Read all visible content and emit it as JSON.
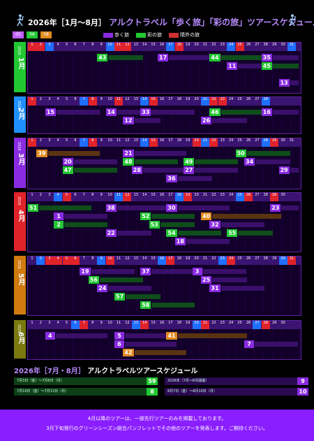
{
  "header": {
    "year_prefix": "2026年",
    "period": "［1月～8月］",
    "title": "アルクトラベル「歩く旅」「彩の旅」ツアースケジュール"
  },
  "legend": {
    "levels": [
      "05",
      "06",
      "08"
    ],
    "items": [
      {
        "label": "歩く旅",
        "color": "#8a2be2"
      },
      {
        "label": "彩の旅",
        "color": "#22c832"
      },
      {
        "label": "晴外の旅",
        "color": "#d03030"
      }
    ]
  },
  "months": [
    {
      "year": "2026",
      "name": "1月",
      "color": "#22c832",
      "days": [
        1,
        2,
        3,
        4,
        5,
        6,
        7,
        8,
        9,
        10,
        11,
        12,
        13,
        14,
        15,
        16,
        17,
        18,
        19,
        20,
        21,
        22,
        23,
        24,
        25,
        26,
        27,
        28,
        29,
        30,
        31
      ],
      "sat": [
        3,
        10,
        17,
        24,
        31
      ],
      "hol": [
        1,
        2,
        11,
        12,
        18,
        25
      ],
      "tours": [
        {
          "n": "43",
          "c": "g",
          "d": 9,
          "w": 4,
          "row": 1
        },
        {
          "n": "17",
          "c": "p",
          "d": 16,
          "w": 6,
          "row": 1
        },
        {
          "n": "44",
          "c": "g",
          "d": 22,
          "w": 5,
          "row": 1
        },
        {
          "n": "35",
          "c": "p",
          "d": 28,
          "w": 3,
          "row": 1
        },
        {
          "n": "11",
          "c": "p",
          "d": 24,
          "w": 4,
          "row": 2
        },
        {
          "n": "45",
          "c": "g",
          "d": 28,
          "w": 3,
          "row": 2
        },
        {
          "n": "13",
          "c": "p",
          "d": 30,
          "w": 1,
          "row": 4
        }
      ]
    },
    {
      "year": "2026",
      "name": "2月",
      "color": "#1f8fff",
      "days": [
        1,
        2,
        3,
        4,
        5,
        6,
        7,
        8,
        9,
        10,
        11,
        12,
        13,
        14,
        15,
        16,
        17,
        18,
        19,
        20,
        21,
        22,
        23,
        24,
        25,
        26,
        27,
        28
      ],
      "sat": [
        7,
        14,
        21,
        28
      ],
      "hol": [
        1,
        8,
        11,
        15,
        22,
        23
      ],
      "tours": [
        {
          "n": "15",
          "c": "p",
          "d": 3,
          "w": 5,
          "row": 1
        },
        {
          "n": "14",
          "c": "p",
          "d": 10,
          "w": 5,
          "row": 1
        },
        {
          "n": "33",
          "c": "p",
          "d": 14,
          "w": 5,
          "row": 1
        },
        {
          "n": "46",
          "c": "g",
          "d": 22,
          "w": 5,
          "row": 1
        },
        {
          "n": "16",
          "c": "p",
          "d": 28,
          "w": 3,
          "row": 1
        },
        {
          "n": "12",
          "c": "p",
          "d": 12,
          "w": 3,
          "row": 2
        },
        {
          "n": "26",
          "c": "p",
          "d": 21,
          "w": 4,
          "row": 2
        }
      ]
    },
    {
      "year": "2026",
      "name": "3月",
      "color": "#8a2be2",
      "days": [
        1,
        2,
        3,
        4,
        5,
        6,
        7,
        8,
        9,
        10,
        11,
        12,
        13,
        14,
        15,
        16,
        17,
        18,
        19,
        20,
        21,
        22,
        23,
        24,
        25,
        26,
        27,
        28,
        29,
        30,
        31
      ],
      "sat": [
        7,
        14,
        21,
        28
      ],
      "hol": [
        1,
        8,
        15,
        20,
        22,
        29
      ],
      "tours": [
        {
          "n": "39",
          "c": "o",
          "d": 2,
          "w": 6,
          "row": 1
        },
        {
          "n": "21",
          "c": "p",
          "d": 12,
          "w": 6,
          "row": 1
        },
        {
          "n": "50",
          "c": "g",
          "d": 25,
          "w": 5,
          "row": 1
        },
        {
          "n": "20",
          "c": "p",
          "d": 5,
          "w": 5,
          "row": 2
        },
        {
          "n": "48",
          "c": "g",
          "d": 12,
          "w": 5,
          "row": 2
        },
        {
          "n": "49",
          "c": "g",
          "d": 19,
          "w": 5,
          "row": 2
        },
        {
          "n": "34",
          "c": "p",
          "d": 26,
          "w": 4,
          "row": 2
        },
        {
          "n": "47",
          "c": "g",
          "d": 5,
          "w": 5,
          "row": 3
        },
        {
          "n": "28",
          "c": "p",
          "d": 13,
          "w": 5,
          "row": 3
        },
        {
          "n": "27",
          "c": "p",
          "d": 19,
          "w": 5,
          "row": 3
        },
        {
          "n": "29",
          "c": "p",
          "d": 30,
          "w": 1,
          "row": 3
        },
        {
          "n": "36",
          "c": "p",
          "d": 17,
          "w": 4,
          "row": 4
        }
      ]
    },
    {
      "year": "2026",
      "name": "4月",
      "color": "#e0232b",
      "days": [
        1,
        2,
        3,
        4,
        5,
        6,
        7,
        8,
        9,
        10,
        11,
        12,
        13,
        14,
        15,
        16,
        17,
        18,
        19,
        20,
        21,
        22,
        23,
        24,
        25,
        26,
        27,
        28,
        29,
        30
      ],
      "sat": [
        4,
        11,
        18,
        25
      ],
      "hol": [
        5,
        12,
        19,
        26,
        29
      ],
      "tours": [
        {
          "n": "51",
          "c": "g",
          "d": 1,
          "w": 6,
          "row": 1
        },
        {
          "n": "38",
          "c": "p",
          "d": 10,
          "w": 6,
          "row": 1
        },
        {
          "n": "30",
          "c": "p",
          "d": 17,
          "w": 6,
          "row": 1
        },
        {
          "n": "23",
          "c": "p",
          "d": 29,
          "w": 2,
          "row": 1
        },
        {
          "n": "1",
          "c": "p",
          "d": 4,
          "w": 5,
          "row": 2
        },
        {
          "n": "52",
          "c": "g",
          "d": 14,
          "w": 5,
          "row": 2
        },
        {
          "n": "40",
          "c": "o",
          "d": 21,
          "w": 8,
          "row": 2
        },
        {
          "n": "2",
          "c": "g",
          "d": 4,
          "w": 5,
          "row": 3
        },
        {
          "n": "53",
          "c": "g",
          "d": 15,
          "w": 4,
          "row": 3
        },
        {
          "n": "32",
          "c": "p",
          "d": 22,
          "w": 5,
          "row": 3
        },
        {
          "n": "54",
          "c": "g",
          "d": 17,
          "w": 5,
          "row": 4
        },
        {
          "n": "55",
          "c": "g",
          "d": 24,
          "w": 4,
          "row": 4
        },
        {
          "n": "22",
          "c": "p",
          "d": 10,
          "w": 4,
          "row": 4
        },
        {
          "n": "18",
          "c": "p",
          "d": 18,
          "w": 5,
          "row": 5
        }
      ]
    },
    {
      "year": "2026",
      "name": "5月",
      "color": "#d07a10",
      "days": [
        1,
        2,
        3,
        4,
        5,
        6,
        7,
        8,
        9,
        10,
        11,
        12,
        13,
        14,
        15,
        16,
        17,
        18,
        19,
        20,
        21,
        22,
        23,
        24,
        25,
        26,
        27,
        28,
        29,
        30,
        31
      ],
      "sat": [
        2,
        9,
        16,
        23,
        30
      ],
      "hol": [
        3,
        4,
        5,
        6,
        10,
        17,
        24,
        31
      ],
      "tours": [
        {
          "n": "19",
          "c": "p",
          "d": 7,
          "w": 5,
          "row": 1
        },
        {
          "n": "37",
          "c": "p",
          "d": 14,
          "w": 6,
          "row": 1
        },
        {
          "n": "3",
          "c": "p",
          "d": 20,
          "w": 5,
          "row": 1
        },
        {
          "n": "56",
          "c": "g",
          "d": 8,
          "w": 5,
          "row": 2
        },
        {
          "n": "25",
          "c": "p",
          "d": 21,
          "w": 4,
          "row": 2
        },
        {
          "n": "24",
          "c": "p",
          "d": 9,
          "w": 5,
          "row": 3
        },
        {
          "n": "31",
          "c": "p",
          "d": 22,
          "w": 5,
          "row": 3
        },
        {
          "n": "57",
          "c": "g",
          "d": 11,
          "w": 4,
          "row": 4
        },
        {
          "n": "58",
          "c": "g",
          "d": 14,
          "w": 5,
          "row": 5
        }
      ]
    },
    {
      "year": "2026",
      "name": "6月",
      "color": "#7a7a10",
      "days": [
        1,
        2,
        3,
        4,
        5,
        6,
        7,
        8,
        9,
        10,
        11,
        12,
        13,
        14,
        15,
        16,
        17,
        18,
        19,
        20,
        21,
        22,
        23,
        24,
        25,
        26,
        27,
        28,
        29,
        30
      ],
      "sat": [
        6,
        13,
        20,
        27
      ],
      "hol": [
        7,
        14,
        21,
        28
      ],
      "tours": [
        {
          "n": "4",
          "c": "p",
          "d": 3,
          "w": 6,
          "row": 1
        },
        {
          "n": "5",
          "c": "p",
          "d": 11,
          "w": 6,
          "row": 1
        },
        {
          "n": "41",
          "c": "o",
          "d": 17,
          "w": 8,
          "row": 1
        },
        {
          "n": "6",
          "c": "p",
          "d": 11,
          "w": 6,
          "row": 2
        },
        {
          "n": "7",
          "c": "p",
          "d": 26,
          "w": 5,
          "row": 2
        },
        {
          "n": "42",
          "c": "o",
          "d": 12,
          "w": 6,
          "row": 3
        }
      ]
    }
  ],
  "summer": {
    "title": "2026年［7月・8月］",
    "title2": "アルクトラベルツアースケジュール",
    "items": [
      {
        "n": "59",
        "c": "g",
        "text": "7月3日（金）〜7月6日（月）"
      },
      {
        "n": "8",
        "c": "g",
        "text": "7月10日（金）〜7月13日（月）"
      },
      {
        "n": "9",
        "c": "p",
        "text": "2026年（7月〜8月開催）"
      },
      {
        "n": "10",
        "c": "p",
        "text": "8月7日（金）〜8月10日（月）"
      }
    ]
  },
  "footer": {
    "line1": "4月以降のツアーは、一部先行ツアーのみを掲載しております。",
    "line2": "3月下旬発行のグリーンシーズン総合パンフレットでその他のツアーを発表します。ご期待ください。"
  }
}
